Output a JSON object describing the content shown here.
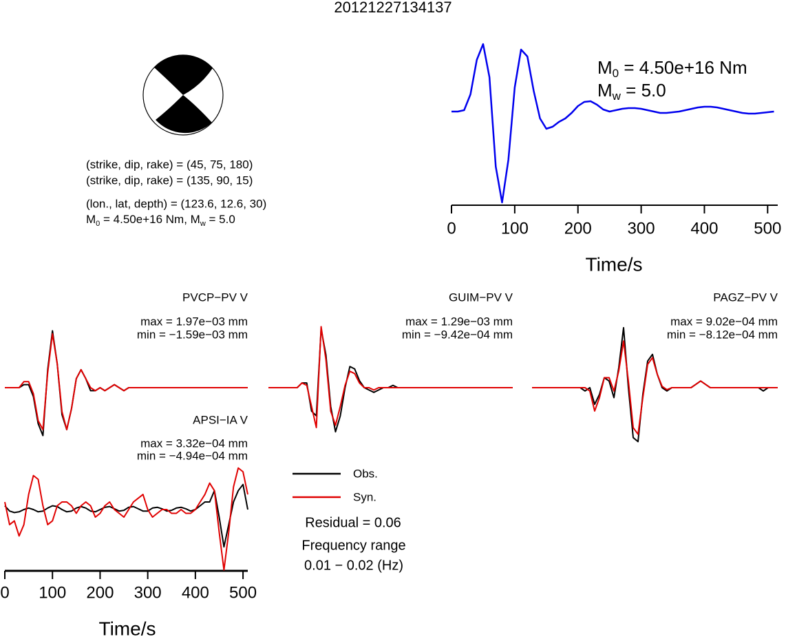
{
  "title": "20121227134137",
  "mechanism": {
    "planes": [
      "(strike, dip, rake) = (45, 75, 180)",
      "(strike, dip, rake) = (135, 90, 15)"
    ],
    "location": "(lon., lat, depth) = (123.6, 12.6, 30)",
    "moment": [
      "M",
      "0",
      " = 4.50e+16 Nm, M",
      "w",
      " = 5.0"
    ]
  },
  "info": {
    "residual": "Residual = 0.06",
    "frequency_label": "Frequency range",
    "frequency": "0.01 − 0.02 (Hz)"
  },
  "chart_data": [
    {
      "type": "line",
      "annotations": [
        [
          "M",
          "0",
          " = 4.50e+16 Nm"
        ],
        [
          "M",
          "w",
          " = 5.0"
        ]
      ],
      "xlabel": "Time/s",
      "xlim": [
        0,
        516
      ],
      "xticks": [
        0,
        100,
        200,
        300,
        400,
        500
      ],
      "ylim": [
        -1.35,
        1.0
      ],
      "x": [
        0,
        10,
        20,
        30,
        40,
        50,
        60,
        70,
        80,
        90,
        100,
        110,
        120,
        130,
        140,
        150,
        160,
        170,
        180,
        190,
        200,
        210,
        220,
        230,
        240,
        250,
        260,
        270,
        280,
        290,
        300,
        310,
        320,
        330,
        340,
        350,
        360,
        370,
        380,
        390,
        400,
        410,
        420,
        430,
        440,
        450,
        460,
        470,
        480,
        490,
        500,
        510
      ],
      "series": [
        {
          "color": "#0000ee",
          "values": [
            0,
            0,
            0.02,
            0.25,
            0.75,
            0.98,
            0.5,
            -0.8,
            -1.32,
            -0.7,
            0.35,
            0.9,
            0.8,
            0.3,
            -0.1,
            -0.25,
            -0.22,
            -0.15,
            -0.1,
            -0.02,
            0.08,
            0.14,
            0.15,
            0.1,
            0.03,
            0,
            0.02,
            0.04,
            0.05,
            0.05,
            0.04,
            0.02,
            0,
            -0.02,
            -0.02,
            -0.01,
            0,
            0.02,
            0.04,
            0.06,
            0.07,
            0.07,
            0.06,
            0.04,
            0.02,
            0,
            -0.02,
            -0.03,
            -0.03,
            -0.02,
            -0.01,
            0
          ]
        }
      ]
    },
    {
      "type": "line",
      "title": "PVCP−PV V",
      "annotations": [
        "max = 1.97e−03 mm",
        "min = −1.59e−03 mm"
      ],
      "xlim": [
        0,
        510
      ],
      "ylim": [
        -0.002,
        0.002
      ],
      "x": [
        0,
        10,
        20,
        30,
        40,
        50,
        60,
        70,
        80,
        90,
        100,
        110,
        120,
        130,
        140,
        150,
        160,
        170,
        180,
        190,
        200,
        210,
        220,
        230,
        240,
        250,
        260,
        270,
        280,
        290,
        300,
        310,
        320,
        330,
        340,
        350,
        360,
        370,
        380,
        390,
        400,
        410,
        420,
        430,
        440,
        450,
        460,
        470,
        480,
        490,
        500,
        510
      ],
      "series": [
        {
          "color": "#000000",
          "values": [
            0,
            0,
            0,
            0,
            0.0001,
            0.0001,
            -0.0003,
            -0.0012,
            -0.0016,
            0.0006,
            0.0019,
            0.0008,
            -0.0009,
            -0.0014,
            -0.0007,
            0.0003,
            0.0006,
            0.0003,
            -0.0001,
            -0.0001,
            0,
            -0.0001,
            0,
            0.0001,
            0,
            -0.0001,
            0,
            0,
            0,
            0,
            0,
            0,
            0,
            0,
            0,
            0,
            0,
            0,
            0,
            0,
            0,
            0,
            0,
            0,
            0,
            0,
            0,
            0,
            0,
            0,
            0,
            0
          ]
        },
        {
          "color": "#e00000",
          "values": [
            0,
            0,
            0,
            0,
            0.0002,
            0.0002,
            -0.0002,
            -0.0011,
            -0.0014,
            0.0005,
            0.0018,
            0.0008,
            -0.0008,
            -0.0014,
            -0.0007,
            0.0003,
            0.0006,
            0.0003,
            0,
            -0.0001,
            0,
            -0.0001,
            0,
            0.0001,
            0,
            -0.0001,
            0,
            0,
            0,
            0,
            0,
            0,
            0,
            0,
            0,
            0,
            0,
            0,
            0,
            0,
            0,
            0,
            0,
            0,
            0,
            0,
            0,
            0,
            0,
            0,
            0,
            0
          ]
        }
      ]
    },
    {
      "type": "line",
      "title": "GUIM−PV V",
      "annotations": [
        "max = 1.29e−03 mm",
        "min = −9.42e−04 mm"
      ],
      "xlim": [
        0,
        510
      ],
      "ylim": [
        -0.00132,
        0.00132
      ],
      "x": [
        0,
        10,
        20,
        30,
        40,
        50,
        60,
        70,
        80,
        90,
        100,
        110,
        120,
        130,
        140,
        150,
        160,
        170,
        180,
        190,
        200,
        210,
        220,
        230,
        240,
        250,
        260,
        270,
        280,
        290,
        300,
        310,
        320,
        330,
        340,
        350,
        360,
        370,
        380,
        390,
        400,
        410,
        420,
        430,
        440,
        450,
        460,
        470,
        480,
        490,
        500,
        510
      ],
      "series": [
        {
          "color": "#000000",
          "values": [
            0,
            0,
            0,
            0,
            0,
            0,
            0,
            0.0001,
            0.0001,
            -0.0005,
            -0.0006,
            0.00125,
            0.0007,
            -0.0004,
            -0.00094,
            -0.0006,
            0,
            0.00045,
            0.0004,
            0.00015,
            0,
            -5e-05,
            -0.0001,
            -5e-05,
            0,
            0,
            5e-05,
            0,
            0,
            0,
            0,
            0,
            0,
            0,
            0,
            0,
            0,
            0,
            0,
            0,
            0,
            0,
            0,
            0,
            0,
            0,
            0,
            0,
            0,
            0,
            0,
            0
          ]
        },
        {
          "color": "#e00000",
          "values": [
            0,
            0,
            0,
            0,
            0,
            0,
            0,
            0.0001,
            5e-05,
            -0.0004,
            -0.00085,
            0.0013,
            0.0006,
            -0.0005,
            -0.0008,
            -0.0004,
            5e-05,
            0.00035,
            0.0003,
            0.0001,
            0,
            0,
            -5e-05,
            0,
            0,
            0,
            0,
            0,
            0,
            0,
            0,
            0,
            0,
            0,
            0,
            0,
            0,
            0,
            0,
            0,
            0,
            0,
            0,
            0,
            0,
            0,
            0,
            0,
            0,
            0,
            0,
            0
          ]
        }
      ]
    },
    {
      "type": "line",
      "title": "PAGZ−PV V",
      "annotations": [
        "max = 9.02e−04 mm",
        "min = −8.12e−04 mm"
      ],
      "xlim": [
        0,
        510
      ],
      "ylim": [
        -0.00092,
        0.00092
      ],
      "x": [
        0,
        10,
        20,
        30,
        40,
        50,
        60,
        70,
        80,
        90,
        100,
        110,
        120,
        130,
        140,
        150,
        160,
        170,
        180,
        190,
        200,
        210,
        220,
        230,
        240,
        250,
        260,
        270,
        280,
        290,
        300,
        310,
        320,
        330,
        340,
        350,
        360,
        370,
        380,
        390,
        400,
        410,
        420,
        430,
        440,
        450,
        460,
        470,
        480,
        490,
        500,
        510
      ],
      "series": [
        {
          "color": "#000000",
          "values": [
            0,
            0,
            0,
            0,
            0,
            0,
            0,
            0,
            0,
            0,
            0,
            -5e-05,
            0,
            -0.00025,
            -0.0001,
            0.00015,
            0.0001,
            -0.00015,
            0.0003,
            0.0009,
            0,
            -0.00075,
            -0.00081,
            -0.0001,
            0.0004,
            0.0005,
            0.0002,
            0,
            -5e-05,
            0,
            0,
            0,
            0,
            0,
            5e-05,
            0.0001,
            5e-05,
            0,
            0,
            0,
            0,
            0,
            0,
            0,
            0,
            0,
            0,
            0,
            -5e-05,
            0,
            0,
            0
          ]
        },
        {
          "color": "#e00000",
          "values": [
            0,
            0,
            0,
            0,
            0,
            0,
            0,
            0,
            0,
            0,
            0,
            0,
            -5e-05,
            -0.00035,
            -0.00015,
            0.00015,
            0.00015,
            -5e-05,
            0.00025,
            0.0007,
            0.0001,
            -0.0006,
            -0.0007,
            -0.00015,
            0.00035,
            0.00045,
            0.0002,
            2e-05,
            -3e-05,
            0,
            0,
            0,
            0,
            0,
            5e-05,
            0.0001,
            5e-05,
            0,
            0,
            0,
            0,
            0,
            0,
            0,
            0,
            0,
            0,
            0,
            0,
            0,
            0,
            0
          ]
        }
      ]
    },
    {
      "type": "line",
      "title": "APSI−IA V",
      "annotations": [
        "max = 3.32e−04 mm",
        "min = −4.94e−04 mm"
      ],
      "xlabel": "Time/s",
      "xlim": [
        0,
        510
      ],
      "xticks": [
        0,
        100,
        200,
        300,
        400,
        500
      ],
      "ylim": [
        -0.00082,
        0.00082
      ],
      "x": [
        0,
        10,
        20,
        30,
        40,
        50,
        60,
        70,
        80,
        90,
        100,
        110,
        120,
        130,
        140,
        150,
        160,
        170,
        180,
        190,
        200,
        210,
        220,
        230,
        240,
        250,
        260,
        270,
        280,
        290,
        300,
        310,
        320,
        330,
        340,
        350,
        360,
        370,
        380,
        390,
        400,
        410,
        420,
        430,
        440,
        450,
        460,
        470,
        480,
        490,
        500,
        510
      ],
      "series": [
        {
          "name": "Obs.",
          "color": "#000000",
          "values": [
            5e-05,
            -2e-05,
            -4e-05,
            -3e-05,
            0,
            2e-05,
            0,
            -3e-05,
            -2e-05,
            2e-05,
            5e-05,
            4e-05,
            0,
            -3e-05,
            -2e-05,
            2e-05,
            4e-05,
            2e-05,
            -2e-05,
            -3e-05,
            0,
            3e-05,
            4e-05,
            1e-05,
            -2e-05,
            -1e-05,
            3e-05,
            4e-05,
            1e-05,
            -2e-05,
            -2e-05,
            2e-05,
            3e-05,
            1e-05,
            -2e-05,
            -1e-05,
            2e-05,
            3e-05,
            1e-05,
            -2e-05,
            0,
            5e-05,
            0.0001,
            0.0001,
            0.00025,
            -0.0001,
            -0.000494,
            -0.0002,
            0.0001,
            0.00025,
            0.000332,
            0
          ]
        },
        {
          "name": "Syn.",
          "color": "#e00000",
          "values": [
            0.0001,
            -0.0002,
            -0.00015,
            -0.00035,
            -0.0002,
            0.0002,
            0.00045,
            0.0004,
            5e-05,
            -0.0002,
            -0.00015,
            5e-05,
            0.0001,
            0.0001,
            5e-05,
            -5e-05,
            5e-05,
            0.0001,
            5e-05,
            -0.0001,
            -5e-05,
            5e-05,
            0.0001,
            0,
            -5e-05,
            -0.0001,
            0,
            0.0001,
            0.00015,
            0.0002,
            0,
            -0.0001,
            -5e-05,
            0,
            0,
            -5e-05,
            -5e-05,
            0,
            -5e-05,
            -5e-05,
            0,
            0.0001,
            0.0002,
            0.00035,
            0.00025,
            -0.0003,
            -0.0008,
            -0.0003,
            0.0003,
            0.00055,
            0.0005,
            0.0002
          ]
        }
      ]
    }
  ]
}
